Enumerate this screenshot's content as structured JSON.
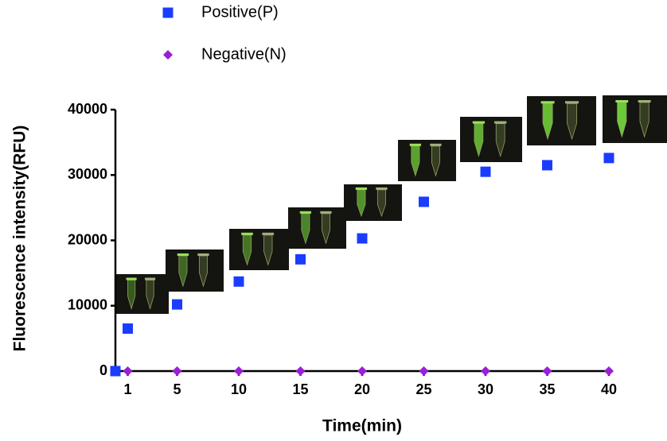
{
  "chart_data": {
    "type": "scatter",
    "x_label": "Time(min)",
    "y_label": "Fluorescence intensity(RFU)",
    "x": [
      0,
      1,
      5,
      10,
      15,
      20,
      25,
      30,
      35,
      40
    ],
    "series": [
      {
        "name": "Positive(P)",
        "color": "#1a3cff",
        "marker": "square",
        "values": [
          0,
          6500,
          10200,
          13700,
          17100,
          20300,
          25900,
          30500,
          31500,
          32600
        ]
      },
      {
        "name": "Negative(N)",
        "color": "#9a1fd6",
        "marker": "diamond",
        "values": [
          null,
          0,
          0,
          0,
          0,
          0,
          0,
          0,
          0,
          0
        ]
      }
    ],
    "xlim": [
      0,
      40
    ],
    "xticks": [
      1,
      5,
      10,
      15,
      20,
      25,
      30,
      35,
      40
    ],
    "ylim": [
      0,
      40000
    ],
    "yticks": [
      0,
      10000,
      20000,
      30000,
      40000
    ],
    "grid": false
  }
}
